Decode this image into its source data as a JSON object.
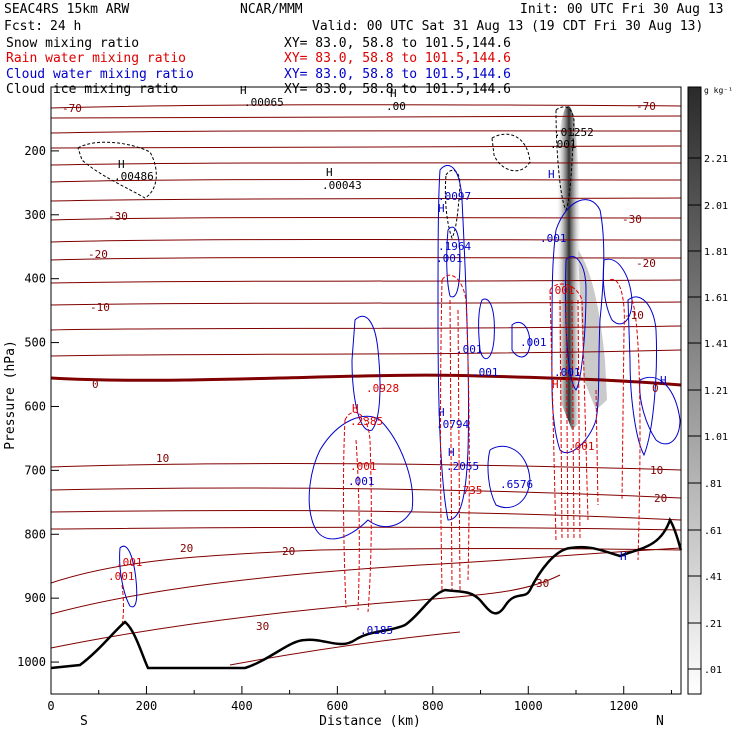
{
  "header": {
    "model": "SEAC4RS 15km ARW",
    "org": "NCAR/MMM",
    "init": "Init: 00 UTC Fri 30 Aug 13",
    "fcst_label": "Fcst:",
    "fcst_value": "24 h",
    "valid": "Valid: 00 UTC Sat 31 Aug 13 (19 CDT Fri 30 Aug 13)"
  },
  "fields": [
    {
      "name": "Snow mixing ratio",
      "xy": "XY=  83.0, 58.8 to 101.5,144.6",
      "color": "#000000"
    },
    {
      "name": "Rain water mixing ratio",
      "xy": "XY=  83.0, 58.8 to 101.5,144.6",
      "color": "#dd0000"
    },
    {
      "name": "Cloud water mixing ratio",
      "xy": "XY=  83.0, 58.8 to 101.5,144.6",
      "color": "#0000cc"
    },
    {
      "name": "Cloud ice mixing ratio",
      "xy": "XY=  83.0, 58.8 to 101.5,144.6",
      "color": "#000000"
    }
  ],
  "chart_data": {
    "type": "cross-section",
    "xlabel": "Distance (km)",
    "ylabel": "Pressure (hPa)",
    "xlim": [
      0,
      1320
    ],
    "ylim": [
      1050,
      100
    ],
    "x_ticks": [
      0,
      200,
      400,
      600,
      800,
      1000,
      1200
    ],
    "y_ticks": [
      200,
      300,
      400,
      500,
      600,
      700,
      800,
      900,
      1000
    ],
    "x_end_labels": {
      "left": "S",
      "right": "N"
    },
    "temperature_contour_labels": [
      "-70",
      "-70",
      "-30",
      "-30",
      "-20",
      "-20",
      "-10",
      "-10",
      "0",
      "0",
      "10",
      "10",
      "20",
      "20",
      "20",
      "30",
      "30"
    ],
    "value_labels": [
      {
        "text": "H",
        "color": "#000000"
      },
      {
        "text": ".00486",
        "color": "#000000"
      },
      {
        "text": "H",
        "color": "#000000"
      },
      {
        "text": ".00043",
        "color": "#000000"
      },
      {
        "text": "H",
        "color": "#000000"
      },
      {
        "text": ".00065",
        "color": "#000000"
      },
      {
        "text": ".00",
        "color": "#000000"
      },
      {
        "text": "H",
        "color": "#000000"
      },
      {
        "text": ".01252",
        "color": "#000000"
      },
      {
        "text": ".001",
        "color": "#000000"
      },
      {
        "text": "H",
        "color": "#0000cc"
      },
      {
        "text": ".0097",
        "color": "#0000cc"
      },
      {
        "text": "H",
        "color": "#0000cc"
      },
      {
        "text": ".1964",
        "color": "#0000cc"
      },
      {
        "text": ".001",
        "color": "#0000cc"
      },
      {
        "text": ".001",
        "color": "#0000cc"
      },
      {
        "text": ".001",
        "color": "#0000cc"
      },
      {
        "text": ".001",
        "color": "#0000cc"
      },
      {
        "text": ".001",
        "color": "#0000cc"
      },
      {
        "text": "H",
        "color": "#0000cc"
      },
      {
        "text": ".6576",
        "color": "#0000cc"
      },
      {
        "text": ".001",
        "color": "#0000cc"
      },
      {
        "text": "H",
        "color": "#dd0000"
      },
      {
        "text": ".0928",
        "color": "#dd0000"
      },
      {
        "text": "H",
        "color": "#dd0000"
      },
      {
        "text": ".2385",
        "color": "#dd0000"
      },
      {
        "text": "H",
        "color": "#0000cc"
      },
      {
        "text": ".0794",
        "color": "#0000cc"
      },
      {
        "text": "H",
        "color": "#0000cc"
      },
      {
        "text": ".2055",
        "color": "#0000cc"
      },
      {
        "text": ".001",
        "color": "#dd0000"
      },
      {
        "text": ".001",
        "color": "#0000cc"
      },
      {
        "text": ".735",
        "color": "#dd0000"
      },
      {
        "text": ".001",
        "color": "#dd0000"
      },
      {
        "text": ".001",
        "color": "#dd0000"
      },
      {
        "text": "H",
        "color": "#0000cc"
      },
      {
        "text": ".0185",
        "color": "#0000cc"
      },
      {
        "text": ".001",
        "color": "#dd0000"
      },
      {
        "text": ".001",
        "color": "#dd0000"
      }
    ],
    "colorbar": {
      "unit": "g kg⁻¹",
      "labels": [
        "2.21",
        "2.01",
        "1.81",
        "1.61",
        "1.41",
        "1.21",
        "1.01",
        ".81",
        ".61",
        ".41",
        ".21",
        ".01"
      ]
    }
  }
}
